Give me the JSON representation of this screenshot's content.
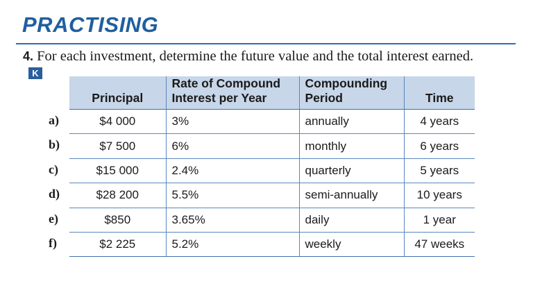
{
  "section_title": "PRACTISING",
  "question": {
    "number": "4.",
    "text": "For each investment, determine the future value and the total interest earned.",
    "badge": "K"
  },
  "table": {
    "headers": {
      "principal": "Principal",
      "rate_line1": "Rate of Compound",
      "rate_line2": "Interest per Year",
      "period_line1": "Compounding",
      "period_line2": "Period",
      "time": "Time"
    },
    "rows": [
      {
        "label": "a)",
        "principal": "$4 000",
        "rate": "3%",
        "period": "annually",
        "time": "4 years"
      },
      {
        "label": "b)",
        "principal": "$7 500",
        "rate": "6%",
        "period": "monthly",
        "time": "6 years"
      },
      {
        "label": "c)",
        "principal": "$15 000",
        "rate": "2.4%",
        "period": "quarterly",
        "time": "5 years"
      },
      {
        "label": "d)",
        "principal": "$28 200",
        "rate": "5.5%",
        "period": "semi-annually",
        "time": "10 years"
      },
      {
        "label": "e)",
        "principal": "$850",
        "rate": "3.65%",
        "period": "daily",
        "time": "1 year"
      },
      {
        "label": "f)",
        "principal": "$2 225",
        "rate": "5.2%",
        "period": "weekly",
        "time": "47 weeks"
      }
    ]
  }
}
